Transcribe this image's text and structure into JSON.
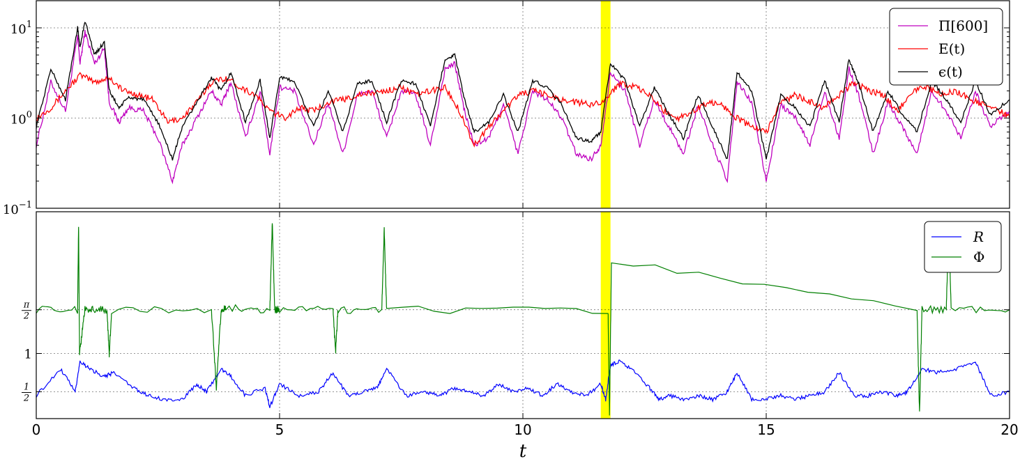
{
  "chart_data": [
    {
      "type": "line",
      "panel": "top",
      "xlim": [
        0,
        20
      ],
      "yscale": "log",
      "ylim": [
        0.1,
        20
      ],
      "ytick_values": [
        0.1,
        1,
        10
      ],
      "ytick_labels": [
        {
          "base": "10",
          "exp": "−1"
        },
        {
          "base": "10",
          "exp": "0"
        },
        {
          "base": "10",
          "exp": "1"
        }
      ],
      "grid": true,
      "legend_position": "top-right",
      "highlight": {
        "x0": 11.6,
        "x1": 11.8,
        "color": "#ffff00"
      },
      "series": [
        {
          "name": "Π[600]",
          "color": "#bf00bf",
          "id": "pi",
          "x": [
            0,
            0.3,
            0.6,
            0.85,
            0.9,
            1.0,
            1.2,
            1.4,
            1.5,
            1.7,
            1.9,
            2.2,
            2.5,
            2.8,
            3.0,
            3.3,
            3.6,
            3.8,
            4.0,
            4.3,
            4.6,
            4.8,
            5.0,
            5.3,
            5.7,
            6.0,
            6.3,
            6.6,
            6.9,
            7.2,
            7.5,
            7.8,
            8.1,
            8.4,
            8.6,
            8.8,
            9.0,
            9.3,
            9.6,
            9.9,
            10.2,
            10.5,
            10.8,
            11.1,
            11.4,
            11.6,
            11.8,
            12.1,
            12.4,
            12.7,
            13.0,
            13.3,
            13.6,
            13.9,
            14.2,
            14.4,
            14.7,
            15.0,
            15.3,
            15.6,
            15.9,
            16.2,
            16.5,
            16.7,
            16.9,
            17.2,
            17.5,
            17.8,
            18.1,
            18.4,
            18.7,
            19.0,
            19.3,
            19.6,
            20.0
          ],
          "values": [
            0.5,
            2.5,
            1.2,
            8.0,
            4.0,
            9.0,
            4.0,
            6.0,
            1.5,
            0.9,
            1.3,
            1.2,
            0.6,
            0.2,
            0.5,
            1.0,
            2.0,
            1.4,
            2.5,
            0.6,
            2.0,
            0.4,
            2.2,
            2.0,
            0.5,
            1.5,
            0.4,
            1.8,
            2.0,
            0.6,
            2.0,
            1.8,
            0.5,
            3.5,
            4.0,
            1.2,
            0.5,
            0.6,
            1.4,
            0.4,
            2.0,
            1.6,
            1.0,
            0.4,
            0.35,
            0.5,
            3.2,
            2.0,
            0.5,
            1.6,
            0.8,
            0.4,
            1.4,
            0.5,
            0.2,
            2.5,
            1.5,
            0.2,
            1.4,
            1.0,
            0.5,
            2.0,
            0.6,
            3.5,
            1.8,
            0.4,
            1.5,
            0.8,
            0.4,
            2.0,
            1.2,
            0.6,
            2.0,
            0.8,
            1.2
          ]
        },
        {
          "name": "E(t)",
          "color": "#ff0000",
          "id": "E",
          "x": [
            0,
            0.3,
            0.6,
            0.9,
            1.2,
            1.5,
            1.8,
            2.1,
            2.4,
            2.7,
            3.0,
            3.3,
            3.6,
            3.9,
            4.2,
            4.5,
            4.8,
            5.1,
            5.4,
            5.7,
            6.0,
            6.3,
            6.6,
            6.9,
            7.2,
            7.5,
            7.8,
            8.1,
            8.4,
            8.7,
            9.0,
            9.3,
            9.6,
            9.9,
            10.2,
            10.5,
            10.8,
            11.1,
            11.4,
            11.7,
            12.0,
            12.3,
            12.6,
            12.9,
            13.2,
            13.5,
            13.8,
            14.1,
            14.4,
            14.7,
            15.0,
            15.3,
            15.6,
            15.9,
            16.2,
            16.5,
            16.8,
            17.1,
            17.4,
            17.7,
            18.0,
            18.3,
            18.6,
            18.9,
            19.2,
            19.5,
            19.8,
            20.0
          ],
          "values": [
            1.0,
            1.3,
            2.0,
            3.0,
            2.5,
            2.8,
            2.0,
            1.8,
            1.6,
            0.9,
            1.0,
            1.5,
            2.5,
            2.8,
            2.2,
            1.8,
            1.2,
            1.0,
            1.3,
            1.2,
            1.5,
            1.6,
            1.8,
            1.9,
            2.0,
            2.2,
            1.8,
            2.0,
            2.2,
            1.2,
            0.5,
            0.8,
            1.2,
            1.8,
            2.0,
            1.8,
            1.6,
            1.5,
            1.4,
            1.6,
            2.5,
            2.2,
            1.8,
            1.2,
            1.0,
            1.2,
            1.5,
            1.4,
            1.0,
            0.8,
            0.7,
            1.5,
            1.8,
            1.5,
            1.3,
            1.8,
            2.5,
            2.0,
            1.8,
            1.2,
            2.0,
            2.2,
            1.8,
            2.0,
            1.6,
            1.4,
            1.2,
            1.0
          ]
        },
        {
          "name": "ϵ(t)",
          "color": "#000000",
          "id": "eps",
          "x": [
            0,
            0.3,
            0.6,
            0.85,
            0.9,
            1.0,
            1.2,
            1.4,
            1.5,
            1.7,
            1.9,
            2.2,
            2.5,
            2.8,
            3.0,
            3.3,
            3.6,
            3.8,
            4.0,
            4.3,
            4.6,
            4.8,
            5.0,
            5.3,
            5.7,
            6.0,
            6.3,
            6.6,
            6.9,
            7.2,
            7.5,
            7.8,
            8.1,
            8.4,
            8.6,
            8.8,
            9.0,
            9.3,
            9.6,
            9.9,
            10.2,
            10.5,
            10.8,
            11.1,
            11.4,
            11.6,
            11.8,
            12.1,
            12.4,
            12.7,
            13.0,
            13.3,
            13.6,
            13.9,
            14.2,
            14.4,
            14.7,
            15.0,
            15.3,
            15.6,
            15.9,
            16.2,
            16.5,
            16.7,
            16.9,
            17.2,
            17.5,
            17.8,
            18.1,
            18.4,
            18.7,
            19.0,
            19.3,
            19.6,
            20.0
          ],
          "values": [
            0.8,
            3.5,
            1.6,
            10.0,
            6.0,
            12.0,
            5.0,
            7.0,
            2.0,
            1.3,
            1.7,
            1.6,
            0.9,
            0.35,
            0.8,
            1.5,
            2.8,
            2.0,
            3.2,
            0.9,
            2.6,
            0.6,
            2.8,
            2.6,
            0.8,
            2.0,
            0.7,
            2.4,
            2.6,
            0.9,
            2.6,
            2.4,
            0.8,
            4.5,
            5.0,
            1.6,
            0.7,
            0.9,
            1.8,
            0.7,
            2.6,
            2.2,
            1.4,
            0.6,
            0.55,
            0.7,
            4.0,
            2.6,
            0.8,
            2.2,
            1.1,
            0.6,
            1.8,
            0.8,
            0.35,
            3.2,
            2.0,
            0.35,
            1.8,
            1.3,
            0.8,
            2.6,
            0.9,
            4.5,
            2.4,
            0.7,
            2.0,
            1.1,
            0.7,
            2.6,
            1.6,
            0.9,
            2.6,
            1.1,
            1.6
          ]
        }
      ]
    },
    {
      "type": "line",
      "panel": "bottom",
      "xlim": [
        0,
        20
      ],
      "ylim": [
        0.15,
        2.85
      ],
      "ytick_values": [
        0.5,
        1,
        1.5708
      ],
      "ytick_labels": [
        {
          "kind": "frac",
          "num": "1",
          "den": "2"
        },
        {
          "kind": "plain",
          "text": "1"
        },
        {
          "kind": "frac",
          "num": "π",
          "den": "2"
        }
      ],
      "xticks": [
        0,
        5,
        10,
        15,
        20
      ],
      "xtick_labels": [
        "0",
        "5",
        "10",
        "15",
        "20"
      ],
      "xlabel": "t",
      "grid": true,
      "legend_position": "top-right",
      "highlight": {
        "x0": 11.6,
        "x1": 11.8,
        "color": "#ffff00"
      },
      "series": [
        {
          "name": "R",
          "color": "#0000ff",
          "id": "R",
          "x": [
            0,
            0.5,
            0.8,
            0.9,
            1.1,
            1.4,
            1.6,
            2.0,
            2.3,
            2.6,
            3.0,
            3.3,
            3.5,
            3.8,
            4.0,
            4.3,
            4.7,
            4.8,
            5.0,
            5.4,
            5.8,
            6.1,
            6.4,
            6.7,
            7.0,
            7.2,
            7.6,
            8.0,
            8.3,
            8.6,
            8.9,
            9.2,
            9.5,
            9.8,
            10.1,
            10.4,
            10.7,
            11.0,
            11.3,
            11.6,
            11.7,
            11.8,
            12.0,
            12.3,
            12.6,
            12.8,
            13.0,
            13.3,
            13.6,
            13.9,
            14.2,
            14.4,
            14.7,
            15.0,
            15.3,
            15.6,
            15.9,
            16.2,
            16.5,
            16.8,
            17.1,
            17.4,
            17.7,
            17.9,
            18.2,
            18.5,
            18.9,
            19.3,
            19.6,
            20.0
          ],
          "values": [
            0.45,
            0.8,
            0.5,
            0.9,
            0.8,
            0.7,
            0.75,
            0.55,
            0.45,
            0.4,
            0.4,
            0.6,
            0.5,
            0.8,
            0.7,
            0.45,
            0.55,
            0.3,
            0.6,
            0.45,
            0.5,
            0.75,
            0.45,
            0.5,
            0.55,
            0.8,
            0.45,
            0.5,
            0.45,
            0.55,
            0.5,
            0.45,
            0.6,
            0.5,
            0.55,
            0.45,
            0.6,
            0.5,
            0.45,
            0.6,
            0.4,
            0.85,
            0.9,
            0.75,
            0.55,
            0.4,
            0.45,
            0.4,
            0.45,
            0.4,
            0.5,
            0.75,
            0.4,
            0.4,
            0.45,
            0.4,
            0.45,
            0.5,
            0.75,
            0.45,
            0.45,
            0.5,
            0.45,
            0.5,
            0.8,
            0.75,
            0.8,
            0.9,
            0.45,
            0.5
          ]
        },
        {
          "name": "Φ",
          "color": "#007f00",
          "id": "phi",
          "x": [
            0,
            0.85,
            0.87,
            0.89,
            1.0,
            1.2,
            1.45,
            1.5,
            1.55,
            3.6,
            3.7,
            3.8,
            3.9,
            4.8,
            4.85,
            4.9,
            5.0,
            6.1,
            6.15,
            6.2,
            7.1,
            7.15,
            7.2,
            11.75,
            11.78,
            11.82,
            18.1,
            18.15,
            18.2,
            18.7,
            18.75,
            18.8,
            20.0
          ],
          "values": [
            1.5708,
            1.5708,
            2.7,
            1.0,
            1.5708,
            1.5708,
            1.5708,
            1.0,
            1.5708,
            1.5708,
            0.55,
            1.5708,
            1.6,
            1.5708,
            2.7,
            1.5708,
            1.5708,
            1.5708,
            1.0,
            1.5708,
            1.5708,
            2.6,
            1.5708,
            1.5708,
            0.2,
            2.2,
            1.5708,
            0.2,
            1.5708,
            1.5708,
            2.7,
            1.5708,
            1.5708
          ]
        }
      ]
    }
  ]
}
